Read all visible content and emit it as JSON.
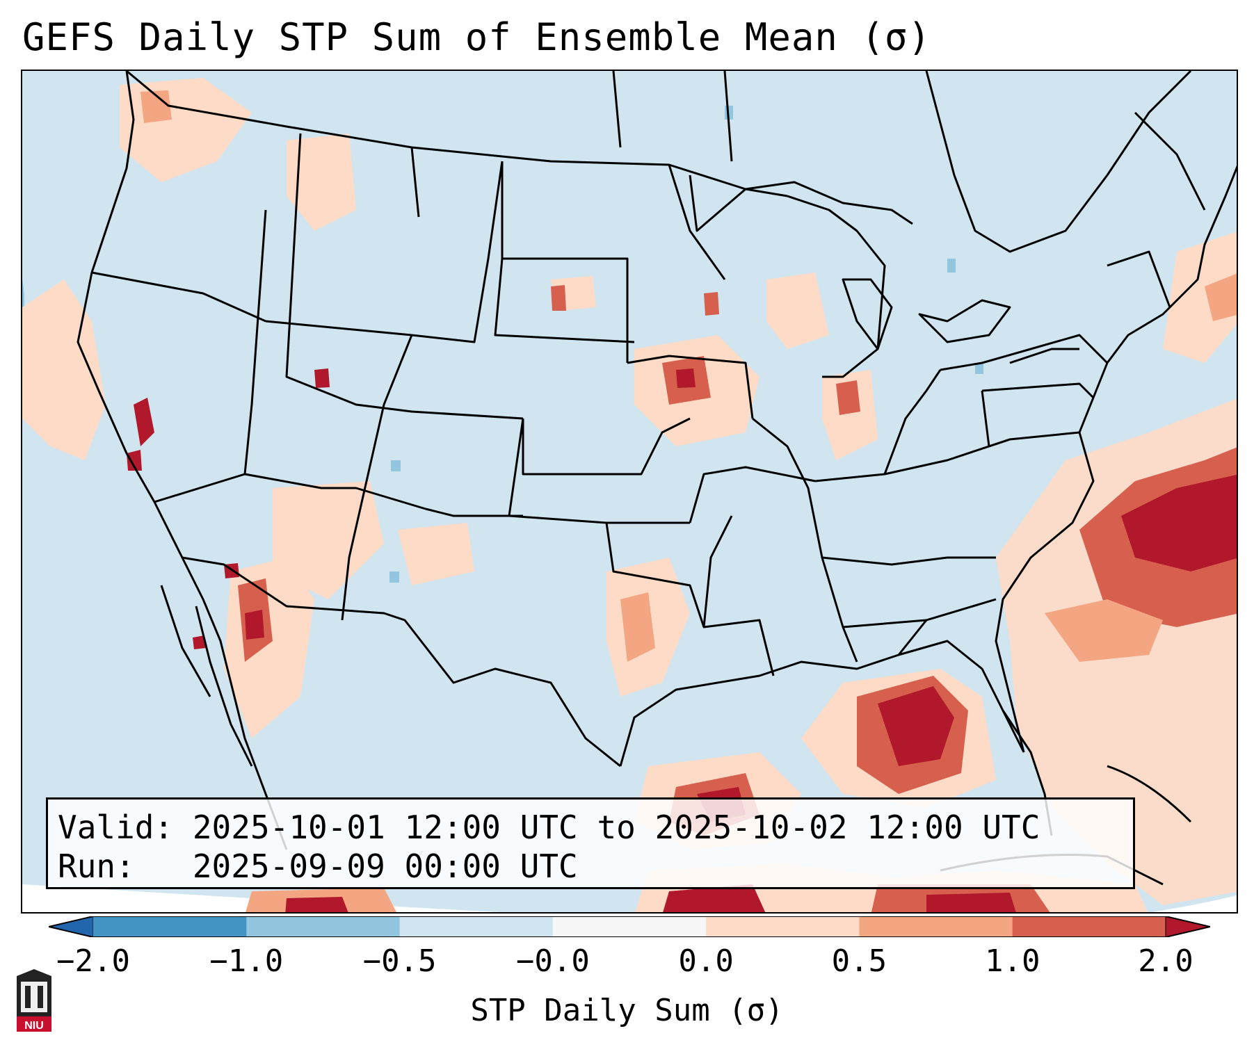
{
  "title": "GEFS Daily STP Sum of Ensemble Mean (σ)",
  "info": {
    "valid": "Valid: 2025-10-01 12:00 UTC to 2025-10-02 12:00 UTC",
    "run": "Run:   2025-09-09 00:00 UTC"
  },
  "colorbar": {
    "label": "STP Daily Sum (σ)",
    "ticks": [
      "−2.0",
      "−1.0",
      "−0.5",
      "−0.0",
      "0.0",
      "0.5",
      "1.0",
      "2.0"
    ],
    "colors": [
      "#2166ac",
      "#4393c3",
      "#92c5de",
      "#d1e5f0",
      "#f7f7f7",
      "#fddbc7",
      "#f4a582",
      "#d6604d",
      "#b2182b"
    ]
  },
  "logo": {
    "text": "NIU",
    "icon": "university-building-icon"
  },
  "colors": {
    "ocean_land_background": "#d1e5f0",
    "outside_domain": "#ffffff",
    "border": "#000000"
  }
}
